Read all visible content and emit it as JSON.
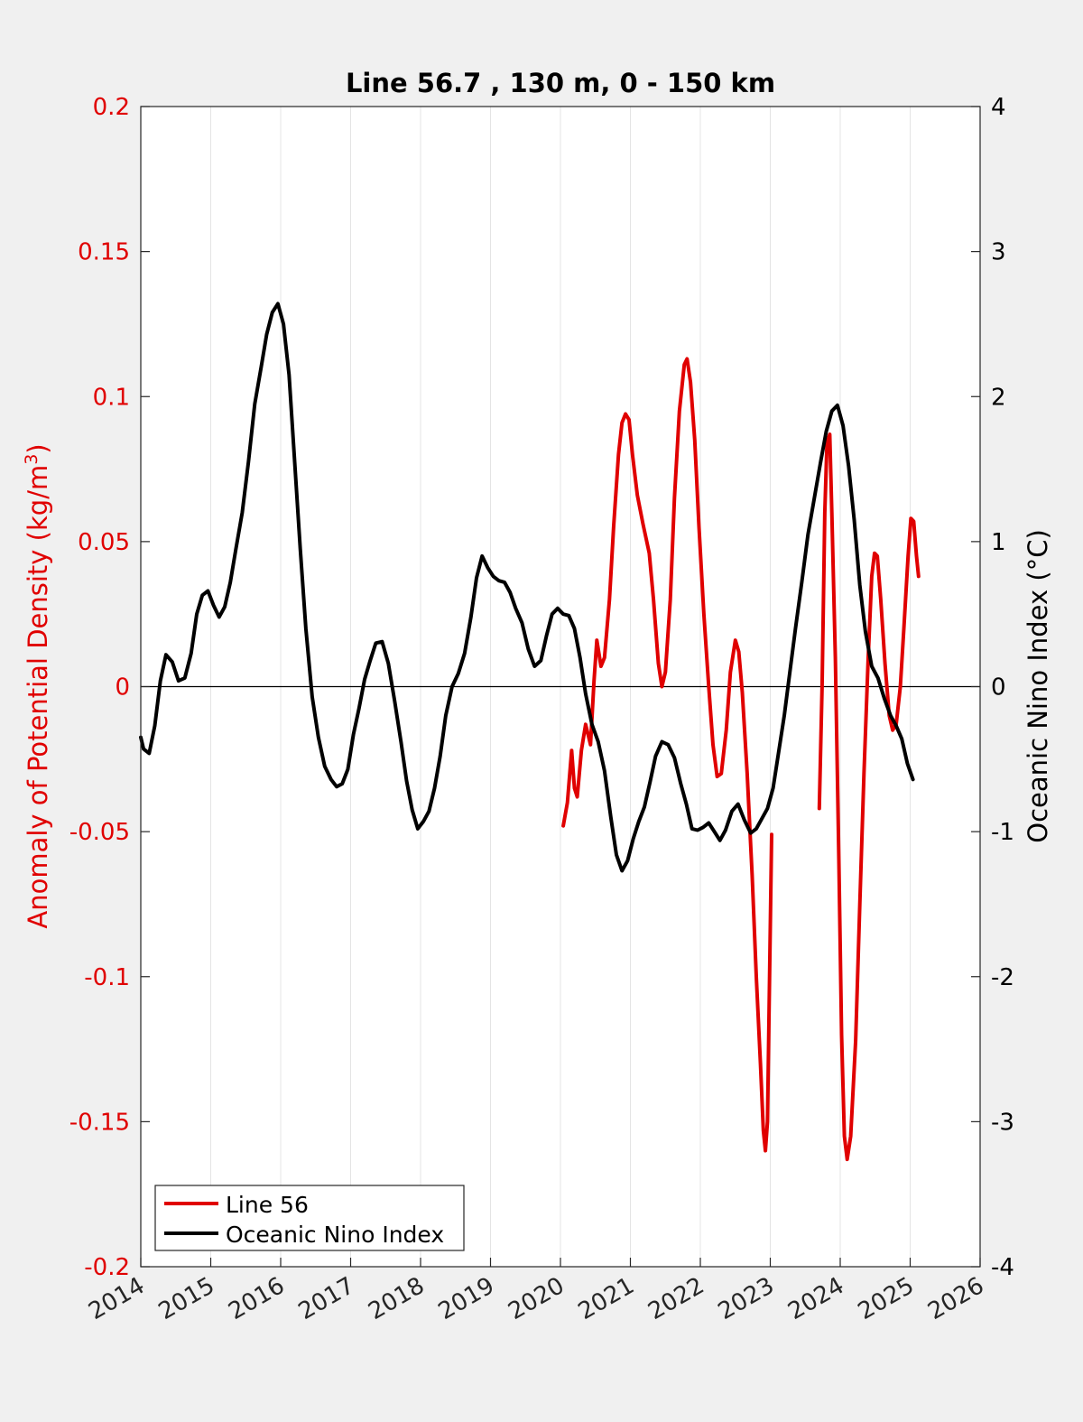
{
  "chart_data": {
    "type": "line",
    "title": "Line 56.7 , 130 m, 0 - 150 km",
    "xlim": [
      2014,
      2026
    ],
    "x_ticks": [
      "2014",
      "2015",
      "2016",
      "2017",
      "2018",
      "2019",
      "2020",
      "2021",
      "2022",
      "2023",
      "2024",
      "2025",
      "2026"
    ],
    "grid": "vertical",
    "legend_location": "bottom-left",
    "left_axis": {
      "label": "Anomaly of Potential Density (kg/m³)",
      "label_main": "Anomaly of Potential Density (kg/m",
      "label_sup": "3",
      "label_end": ")",
      "ylim": [
        -0.2,
        0.2
      ],
      "ticks": [
        "-0.2",
        "-0.15",
        "-0.1",
        "-0.05",
        "0",
        "0.05",
        "0.1",
        "0.15",
        "0.2"
      ],
      "color": "#e00000"
    },
    "right_axis": {
      "label": "Oceanic Nino Index (°C)",
      "ylim": [
        -4,
        4
      ],
      "ticks": [
        "-4",
        "-3",
        "-2",
        "-1",
        "0",
        "1",
        "2",
        "3",
        "4"
      ],
      "color": "#000000"
    },
    "series": [
      {
        "name": "Line 56",
        "axis": "left",
        "color": "#e00000",
        "segments": [
          [
            [
              2020.04,
              -0.048
            ],
            [
              2020.1,
              -0.04
            ],
            [
              2020.16,
              -0.022
            ],
            [
              2020.2,
              -0.035
            ],
            [
              2020.24,
              -0.038
            ],
            [
              2020.3,
              -0.022
            ],
            [
              2020.36,
              -0.013
            ],
            [
              2020.43,
              -0.02
            ],
            [
              2020.48,
              0.002
            ],
            [
              2020.52,
              0.016
            ],
            [
              2020.58,
              0.007
            ],
            [
              2020.63,
              0.01
            ],
            [
              2020.7,
              0.03
            ],
            [
              2020.76,
              0.055
            ],
            [
              2020.83,
              0.08
            ],
            [
              2020.88,
              0.091
            ],
            [
              2020.93,
              0.094
            ],
            [
              2020.98,
              0.092
            ],
            [
              2021.03,
              0.08
            ],
            [
              2021.1,
              0.066
            ],
            [
              2021.18,
              0.056
            ],
            [
              2021.27,
              0.046
            ],
            [
              2021.33,
              0.03
            ],
            [
              2021.4,
              0.008
            ],
            [
              2021.45,
              0.0
            ],
            [
              2021.5,
              0.005
            ],
            [
              2021.57,
              0.03
            ],
            [
              2021.63,
              0.065
            ],
            [
              2021.7,
              0.095
            ],
            [
              2021.77,
              0.111
            ],
            [
              2021.81,
              0.113
            ],
            [
              2021.86,
              0.105
            ],
            [
              2021.92,
              0.085
            ],
            [
              2021.98,
              0.055
            ],
            [
              2022.05,
              0.025
            ],
            [
              2022.12,
              0.0
            ],
            [
              2022.18,
              -0.02
            ],
            [
              2022.24,
              -0.031
            ],
            [
              2022.3,
              -0.03
            ],
            [
              2022.37,
              -0.015
            ],
            [
              2022.43,
              0.005
            ],
            [
              2022.5,
              0.016
            ],
            [
              2022.55,
              0.012
            ],
            [
              2022.6,
              -0.002
            ],
            [
              2022.67,
              -0.03
            ],
            [
              2022.74,
              -0.065
            ],
            [
              2022.8,
              -0.1
            ],
            [
              2022.86,
              -0.13
            ],
            [
              2022.9,
              -0.153
            ],
            [
              2022.93,
              -0.16
            ],
            [
              2022.96,
              -0.15
            ],
            [
              2022.99,
              -0.1
            ],
            [
              2023.02,
              -0.051
            ]
          ],
          [
            [
              2023.7,
              -0.042
            ],
            [
              2023.74,
              0.0
            ],
            [
              2023.78,
              0.06
            ],
            [
              2023.81,
              0.084
            ],
            [
              2023.85,
              0.087
            ],
            [
              2023.88,
              0.06
            ],
            [
              2023.93,
              0.01
            ],
            [
              2023.98,
              -0.06
            ],
            [
              2024.02,
              -0.12
            ],
            [
              2024.06,
              -0.155
            ],
            [
              2024.1,
              -0.163
            ],
            [
              2024.15,
              -0.155
            ],
            [
              2024.22,
              -0.122
            ],
            [
              2024.28,
              -0.075
            ],
            [
              2024.34,
              -0.03
            ],
            [
              2024.4,
              0.01
            ],
            [
              2024.45,
              0.038
            ],
            [
              2024.49,
              0.046
            ],
            [
              2024.53,
              0.045
            ],
            [
              2024.58,
              0.03
            ],
            [
              2024.64,
              0.008
            ],
            [
              2024.7,
              -0.01
            ],
            [
              2024.75,
              -0.015
            ],
            [
              2024.8,
              -0.013
            ],
            [
              2024.86,
              0.0
            ],
            [
              2024.91,
              0.02
            ],
            [
              2024.97,
              0.045
            ],
            [
              2025.01,
              0.058
            ],
            [
              2025.05,
              0.057
            ],
            [
              2025.09,
              0.045
            ],
            [
              2025.12,
              0.038
            ]
          ]
        ]
      },
      {
        "name": "Oceanic Nino Index",
        "axis": "right",
        "color": "#000000",
        "segments": [
          [
            [
              2014.0,
              -0.35
            ],
            [
              2014.04,
              -0.43
            ],
            [
              2014.12,
              -0.46
            ],
            [
              2014.2,
              -0.27
            ],
            [
              2014.28,
              0.04
            ],
            [
              2014.36,
              0.22
            ],
            [
              2014.45,
              0.17
            ],
            [
              2014.54,
              0.04
            ],
            [
              2014.63,
              0.06
            ],
            [
              2014.72,
              0.23
            ],
            [
              2014.8,
              0.5
            ],
            [
              2014.88,
              0.63
            ],
            [
              2014.96,
              0.66
            ],
            [
              2015.04,
              0.56
            ],
            [
              2015.12,
              0.48
            ],
            [
              2015.2,
              0.55
            ],
            [
              2015.28,
              0.72
            ],
            [
              2015.36,
              0.95
            ],
            [
              2015.45,
              1.2
            ],
            [
              2015.54,
              1.55
            ],
            [
              2015.63,
              1.95
            ],
            [
              2015.72,
              2.2
            ],
            [
              2015.8,
              2.43
            ],
            [
              2015.88,
              2.58
            ],
            [
              2015.96,
              2.64
            ],
            [
              2016.04,
              2.5
            ],
            [
              2016.12,
              2.15
            ],
            [
              2016.2,
              1.55
            ],
            [
              2016.28,
              0.95
            ],
            [
              2016.36,
              0.4
            ],
            [
              2016.45,
              -0.07
            ],
            [
              2016.54,
              -0.35
            ],
            [
              2016.63,
              -0.55
            ],
            [
              2016.72,
              -0.64
            ],
            [
              2016.8,
              -0.69
            ],
            [
              2016.88,
              -0.67
            ],
            [
              2016.96,
              -0.57
            ],
            [
              2017.04,
              -0.33
            ],
            [
              2017.12,
              -0.15
            ],
            [
              2017.2,
              0.05
            ],
            [
              2017.28,
              0.18
            ],
            [
              2017.36,
              0.3
            ],
            [
              2017.45,
              0.31
            ],
            [
              2017.54,
              0.16
            ],
            [
              2017.63,
              -0.1
            ],
            [
              2017.72,
              -0.38
            ],
            [
              2017.8,
              -0.65
            ],
            [
              2017.88,
              -0.85
            ],
            [
              2017.96,
              -0.98
            ],
            [
              2018.04,
              -0.93
            ],
            [
              2018.12,
              -0.86
            ],
            [
              2018.2,
              -0.7
            ],
            [
              2018.28,
              -0.48
            ],
            [
              2018.36,
              -0.2
            ],
            [
              2018.45,
              0.0
            ],
            [
              2018.54,
              0.09
            ],
            [
              2018.63,
              0.23
            ],
            [
              2018.72,
              0.48
            ],
            [
              2018.8,
              0.75
            ],
            [
              2018.88,
              0.9
            ],
            [
              2018.96,
              0.82
            ],
            [
              2019.04,
              0.76
            ],
            [
              2019.12,
              0.73
            ],
            [
              2019.2,
              0.72
            ],
            [
              2019.28,
              0.65
            ],
            [
              2019.36,
              0.54
            ],
            [
              2019.45,
              0.44
            ],
            [
              2019.54,
              0.26
            ],
            [
              2019.63,
              0.14
            ],
            [
              2019.72,
              0.18
            ],
            [
              2019.8,
              0.35
            ],
            [
              2019.88,
              0.5
            ],
            [
              2019.96,
              0.54
            ],
            [
              2020.04,
              0.5
            ],
            [
              2020.12,
              0.49
            ],
            [
              2020.2,
              0.4
            ],
            [
              2020.28,
              0.2
            ],
            [
              2020.36,
              -0.05
            ],
            [
              2020.45,
              -0.26
            ],
            [
              2020.54,
              -0.38
            ],
            [
              2020.63,
              -0.58
            ],
            [
              2020.72,
              -0.9
            ],
            [
              2020.8,
              -1.16
            ],
            [
              2020.88,
              -1.27
            ],
            [
              2020.96,
              -1.2
            ],
            [
              2021.04,
              -1.05
            ],
            [
              2021.12,
              -0.93
            ],
            [
              2021.2,
              -0.83
            ],
            [
              2021.28,
              -0.66
            ],
            [
              2021.36,
              -0.48
            ],
            [
              2021.45,
              -0.38
            ],
            [
              2021.54,
              -0.4
            ],
            [
              2021.63,
              -0.49
            ],
            [
              2021.72,
              -0.67
            ],
            [
              2021.8,
              -0.81
            ],
            [
              2021.88,
              -0.98
            ],
            [
              2021.96,
              -0.99
            ],
            [
              2022.04,
              -0.97
            ],
            [
              2022.12,
              -0.94
            ],
            [
              2022.2,
              -1.0
            ],
            [
              2022.28,
              -1.06
            ],
            [
              2022.36,
              -0.99
            ],
            [
              2022.45,
              -0.86
            ],
            [
              2022.54,
              -0.81
            ],
            [
              2022.63,
              -0.92
            ],
            [
              2022.72,
              -1.01
            ],
            [
              2022.8,
              -0.98
            ],
            [
              2022.88,
              -0.91
            ],
            [
              2022.96,
              -0.84
            ],
            [
              2023.04,
              -0.7
            ],
            [
              2023.12,
              -0.45
            ],
            [
              2023.2,
              -0.2
            ],
            [
              2023.28,
              0.1
            ],
            [
              2023.36,
              0.4
            ],
            [
              2023.45,
              0.72
            ],
            [
              2023.54,
              1.05
            ],
            [
              2023.63,
              1.3
            ],
            [
              2023.72,
              1.55
            ],
            [
              2023.8,
              1.76
            ],
            [
              2023.88,
              1.9
            ],
            [
              2023.96,
              1.94
            ],
            [
              2024.04,
              1.8
            ],
            [
              2024.12,
              1.52
            ],
            [
              2024.2,
              1.15
            ],
            [
              2024.28,
              0.7
            ],
            [
              2024.36,
              0.38
            ],
            [
              2024.45,
              0.14
            ],
            [
              2024.54,
              0.06
            ],
            [
              2024.63,
              -0.08
            ],
            [
              2024.72,
              -0.2
            ],
            [
              2024.8,
              -0.27
            ],
            [
              2024.88,
              -0.36
            ],
            [
              2024.96,
              -0.53
            ],
            [
              2025.04,
              -0.64
            ]
          ]
        ]
      }
    ]
  }
}
